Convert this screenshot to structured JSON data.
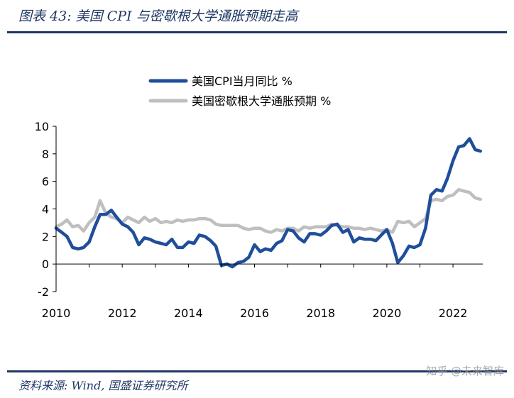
{
  "header": {
    "title": "图表 43:  美国 CPI 与密歇根大学通胀预期走高"
  },
  "footer": {
    "source": "资料来源:  Wind,  国盛证券研究所"
  },
  "watermark": "知乎 @未来智库",
  "colors": {
    "brand": "#1f3864",
    "cpi": "#1f4e9a",
    "expectation": "#bfbfbf"
  },
  "chart_data": {
    "type": "line",
    "title": "美国 CPI 与密歇根大学通胀预期走高",
    "xlabel": "",
    "ylabel": "",
    "xlim": [
      2010,
      2022.9
    ],
    "ylim": [
      -2,
      10
    ],
    "yticks": [
      -2,
      0,
      2,
      4,
      6,
      8,
      10
    ],
    "xticks": [
      2010,
      2012,
      2014,
      2016,
      2018,
      2020,
      2022
    ],
    "legend_placement": "top-center",
    "grid": false,
    "series": [
      {
        "name": "美国CPI当月同比 %",
        "color": "#1f4e9a",
        "x": [
          2010.0,
          2010.17,
          2010.33,
          2010.5,
          2010.67,
          2010.83,
          2011.0,
          2011.17,
          2011.33,
          2011.5,
          2011.67,
          2011.83,
          2012.0,
          2012.17,
          2012.33,
          2012.5,
          2012.67,
          2012.83,
          2013.0,
          2013.17,
          2013.33,
          2013.5,
          2013.67,
          2013.83,
          2014.0,
          2014.17,
          2014.33,
          2014.5,
          2014.67,
          2014.83,
          2015.0,
          2015.17,
          2015.33,
          2015.5,
          2015.67,
          2015.83,
          2016.0,
          2016.17,
          2016.33,
          2016.5,
          2016.67,
          2016.83,
          2017.0,
          2017.17,
          2017.33,
          2017.5,
          2017.67,
          2017.83,
          2018.0,
          2018.17,
          2018.33,
          2018.5,
          2018.67,
          2018.83,
          2019.0,
          2019.17,
          2019.33,
          2019.5,
          2019.67,
          2019.83,
          2020.0,
          2020.17,
          2020.33,
          2020.5,
          2020.67,
          2020.83,
          2021.0,
          2021.17,
          2021.33,
          2021.5,
          2021.67,
          2021.83,
          2022.0,
          2022.17,
          2022.33,
          2022.5,
          2022.67,
          2022.83
        ],
        "values": [
          2.6,
          2.3,
          2.0,
          1.2,
          1.1,
          1.2,
          1.6,
          2.7,
          3.6,
          3.6,
          3.9,
          3.4,
          2.9,
          2.7,
          2.3,
          1.4,
          1.9,
          1.8,
          1.6,
          1.5,
          1.4,
          1.8,
          1.2,
          1.2,
          1.6,
          1.5,
          2.1,
          2.0,
          1.7,
          1.3,
          -0.1,
          0.0,
          -0.2,
          0.1,
          0.2,
          0.5,
          1.4,
          0.9,
          1.1,
          1.0,
          1.5,
          1.7,
          2.5,
          2.4,
          1.9,
          1.6,
          2.2,
          2.2,
          2.1,
          2.4,
          2.8,
          2.9,
          2.3,
          2.5,
          1.6,
          1.9,
          1.8,
          1.8,
          1.7,
          2.1,
          2.5,
          1.5,
          0.1,
          0.6,
          1.3,
          1.2,
          1.4,
          2.6,
          5.0,
          5.4,
          5.3,
          6.2,
          7.5,
          8.5,
          8.6,
          9.1,
          8.3,
          8.2
        ]
      },
      {
        "name": "美国密歇根大学通胀预期 %",
        "color": "#bfbfbf",
        "x": [
          2010.0,
          2010.17,
          2010.33,
          2010.5,
          2010.67,
          2010.83,
          2011.0,
          2011.17,
          2011.33,
          2011.5,
          2011.67,
          2011.83,
          2012.0,
          2012.17,
          2012.33,
          2012.5,
          2012.67,
          2012.83,
          2013.0,
          2013.17,
          2013.33,
          2013.5,
          2013.67,
          2013.83,
          2014.0,
          2014.17,
          2014.33,
          2014.5,
          2014.67,
          2014.83,
          2015.0,
          2015.17,
          2015.33,
          2015.5,
          2015.67,
          2015.83,
          2016.0,
          2016.17,
          2016.33,
          2016.5,
          2016.67,
          2016.83,
          2017.0,
          2017.17,
          2017.33,
          2017.5,
          2017.67,
          2017.83,
          2018.0,
          2018.17,
          2018.33,
          2018.5,
          2018.67,
          2018.83,
          2019.0,
          2019.17,
          2019.33,
          2019.5,
          2019.67,
          2019.83,
          2020.0,
          2020.17,
          2020.33,
          2020.5,
          2020.67,
          2020.83,
          2021.0,
          2021.17,
          2021.33,
          2021.5,
          2021.67,
          2021.83,
          2022.0,
          2022.17,
          2022.33,
          2022.5,
          2022.67,
          2022.83
        ],
        "values": [
          2.7,
          2.9,
          3.2,
          2.7,
          2.8,
          2.4,
          3.0,
          3.4,
          4.6,
          3.7,
          3.4,
          3.3,
          3.0,
          3.4,
          3.2,
          3.0,
          3.4,
          3.1,
          3.3,
          3.0,
          3.1,
          3.0,
          3.2,
          3.1,
          3.2,
          3.2,
          3.3,
          3.3,
          3.2,
          2.9,
          2.8,
          2.8,
          2.8,
          2.8,
          2.6,
          2.5,
          2.6,
          2.6,
          2.4,
          2.3,
          2.5,
          2.4,
          2.6,
          2.6,
          2.4,
          2.7,
          2.6,
          2.7,
          2.7,
          2.7,
          2.9,
          2.8,
          2.7,
          2.7,
          2.6,
          2.6,
          2.5,
          2.6,
          2.5,
          2.4,
          2.5,
          2.3,
          3.1,
          3.0,
          3.1,
          2.7,
          3.0,
          3.3,
          4.6,
          4.7,
          4.6,
          4.9,
          5.0,
          5.4,
          5.3,
          5.2,
          4.8,
          4.7
        ]
      }
    ]
  }
}
